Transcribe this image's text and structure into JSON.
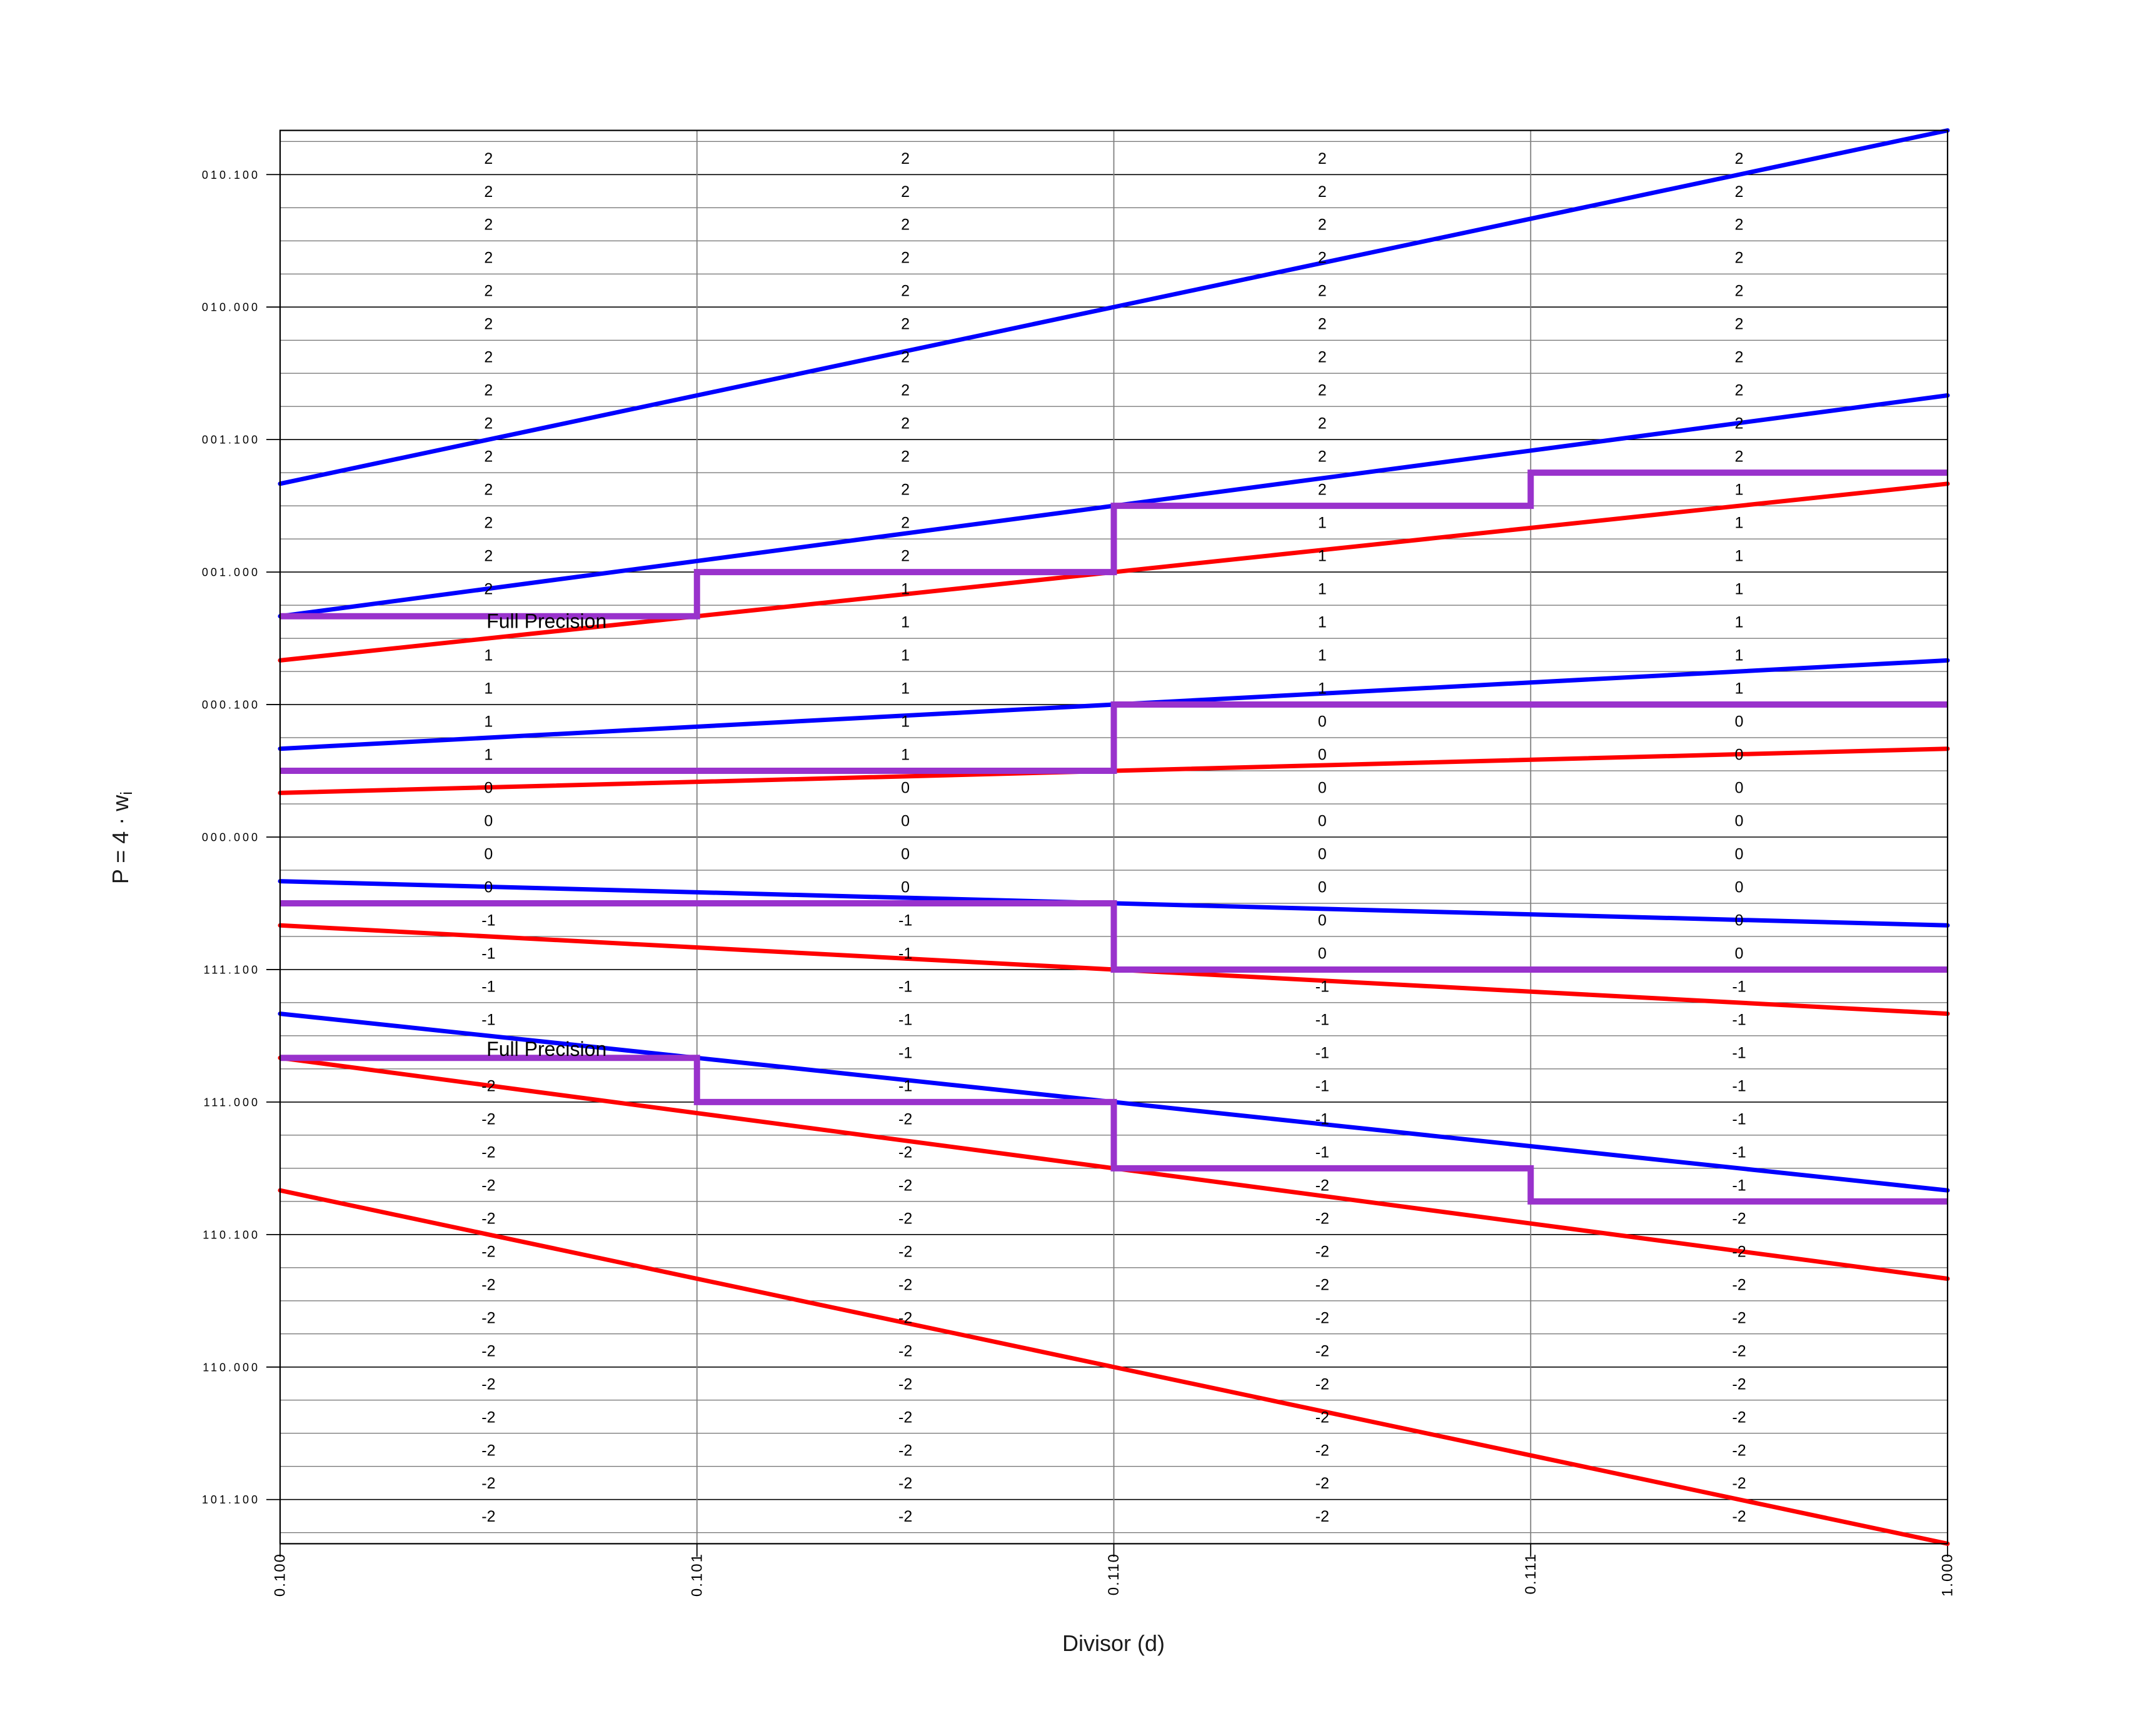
{
  "chart_data": {
    "type": "line",
    "title": "",
    "xlabel": "Divisor (d)",
    "ylabel": "P = 4 · w",
    "ylabel_sub": "i",
    "xlim": [
      0.5,
      1.0
    ],
    "ylim": [
      -2.6667,
      2.6667
    ],
    "grid": {
      "minor_step_p": 0.125,
      "major_step_p": 0.5,
      "vertical_lines_at_x_ticks": true,
      "legend": "none"
    },
    "colors": {
      "upper_bound_blue": "#0000ff",
      "lower_bound_red": "#ff0000",
      "staircase_purple": "#9932cc",
      "text": "#000000"
    },
    "x_ticks": [
      {
        "label": "0.100",
        "value": 0.5
      },
      {
        "label": "0.101",
        "value": 0.625
      },
      {
        "label": "0.110",
        "value": 0.75
      },
      {
        "label": "0.111",
        "value": 0.875
      },
      {
        "label": "1.000",
        "value": 1.0
      }
    ],
    "y_ticks": [
      {
        "label": "010.100",
        "value": 2.5
      },
      {
        "label": "010.000",
        "value": 2.0
      },
      {
        "label": "001.100",
        "value": 1.5
      },
      {
        "label": "001.000",
        "value": 1.0
      },
      {
        "label": "000.100",
        "value": 0.5
      },
      {
        "label": "000.000",
        "value": 0.0
      },
      {
        "label": "111.100",
        "value": -0.5
      },
      {
        "label": "111.000",
        "value": -1.0
      },
      {
        "label": "110.100",
        "value": -1.5
      },
      {
        "label": "110.000",
        "value": -2.0
      },
      {
        "label": "101.100",
        "value": -2.5
      }
    ],
    "lines": [
      {
        "name": "U2",
        "slope": "8/3",
        "m": 2.66667,
        "color_group": "blue"
      },
      {
        "name": "U1",
        "slope": "5/3",
        "m": 1.66667,
        "color_group": "blue"
      },
      {
        "name": "U0",
        "slope": "2/3",
        "m": 0.66667,
        "color_group": "blue"
      },
      {
        "name": "U-1",
        "slope": "-1/3",
        "m": -0.33333,
        "color_group": "blue"
      },
      {
        "name": "U-2",
        "slope": "-4/3",
        "m": -1.33333,
        "color_group": "blue"
      },
      {
        "name": "L2",
        "slope": "4/3",
        "m": 1.33333,
        "color_group": "red"
      },
      {
        "name": "L1",
        "slope": "1/3",
        "m": 0.33333,
        "color_group": "red"
      },
      {
        "name": "L0",
        "slope": "-2/3",
        "m": -0.66667,
        "color_group": "red"
      },
      {
        "name": "L-1",
        "slope": "-5/3",
        "m": -1.66667,
        "color_group": "red"
      },
      {
        "name": "L-2",
        "slope": "-8/3",
        "m": -2.66667,
        "color_group": "red"
      }
    ],
    "staircases": [
      {
        "name": "q2-q1-boundary",
        "label": "Full Precision",
        "label_anchor": {
          "d": 0.5619,
          "p": 0.789
        },
        "steps": [
          {
            "d0": 0.5,
            "d1": 0.625,
            "p": 0.83333
          },
          {
            "d0": 0.625,
            "d1": 0.75,
            "p": 1.0
          },
          {
            "d0": 0.75,
            "d1": 0.875,
            "p": 1.25
          },
          {
            "d0": 0.875,
            "d1": 1.0,
            "p": 1.375
          }
        ]
      },
      {
        "name": "q1-q0-boundary",
        "label": "",
        "steps": [
          {
            "d0": 0.5,
            "d1": 0.75,
            "p": 0.25
          },
          {
            "d0": 0.75,
            "d1": 1.0,
            "p": 0.5
          }
        ]
      },
      {
        "name": "q0-qm1-boundary",
        "label": "",
        "steps": [
          {
            "d0": 0.5,
            "d1": 0.75,
            "p": -0.25
          },
          {
            "d0": 0.75,
            "d1": 1.0,
            "p": -0.5
          }
        ]
      },
      {
        "name": "qm1-qm2-boundary",
        "label": "Full Precision",
        "label_anchor": {
          "d": 0.5619,
          "p": -0.826
        },
        "steps": [
          {
            "d0": 0.5,
            "d1": 0.625,
            "p": -0.83333
          },
          {
            "d0": 0.625,
            "d1": 0.75,
            "p": -1.0
          },
          {
            "d0": 0.75,
            "d1": 0.875,
            "p": -1.25
          },
          {
            "d0": 0.875,
            "d1": 1.0,
            "p": -1.375
          }
        ]
      }
    ],
    "quotient_digit_grid": {
      "row_top_center_p": 2.5625,
      "row_step_p": -0.125,
      "row_count": 42,
      "column_centers_d": [
        0.5625,
        0.6875,
        0.8125,
        0.9375
      ],
      "column_d_ranges": [
        [
          0.5,
          0.625
        ],
        [
          0.625,
          0.75
        ],
        [
          0.75,
          0.875
        ],
        [
          0.875,
          1.0
        ]
      ],
      "columns": [
        [
          "2",
          "2",
          "2",
          "2",
          "2",
          "2",
          "2",
          "2",
          "2",
          "2",
          "2",
          "2",
          "2",
          "2",
          "",
          "1",
          "1",
          "1",
          "1",
          "0",
          "0",
          "0",
          "0",
          "-1",
          "-1",
          "-1",
          "-1",
          "",
          "-2",
          "-2",
          "-2",
          "-2",
          "-2",
          "-2",
          "-2",
          "-2",
          "-2",
          "-2",
          "-2",
          "-2",
          "-2",
          "-2"
        ],
        [
          "2",
          "2",
          "2",
          "2",
          "2",
          "2",
          "2",
          "2",
          "2",
          "2",
          "2",
          "2",
          "2",
          "1",
          "1",
          "1",
          "1",
          "1",
          "1",
          "0",
          "0",
          "0",
          "0",
          "-1",
          "-1",
          "-1",
          "-1",
          "-1",
          "-1",
          "-2",
          "-2",
          "-2",
          "-2",
          "-2",
          "-2",
          "-2",
          "-2",
          "-2",
          "-2",
          "-2",
          "-2",
          "-2"
        ],
        [
          "2",
          "2",
          "2",
          "2",
          "2",
          "2",
          "2",
          "2",
          "2",
          "2",
          "2",
          "1",
          "1",
          "1",
          "1",
          "1",
          "1",
          "0",
          "0",
          "0",
          "0",
          "0",
          "0",
          "0",
          "0",
          "-1",
          "-1",
          "-1",
          "-1",
          "-1",
          "-1",
          "-2",
          "-2",
          "-2",
          "-2",
          "-2",
          "-2",
          "-2",
          "-2",
          "-2",
          "-2",
          "-2"
        ],
        [
          "2",
          "2",
          "2",
          "2",
          "2",
          "2",
          "2",
          "2",
          "2",
          "2",
          "1",
          "1",
          "1",
          "1",
          "1",
          "1",
          "1",
          "0",
          "0",
          "0",
          "0",
          "0",
          "0",
          "0",
          "0",
          "-1",
          "-1",
          "-1",
          "-1",
          "-1",
          "-1",
          "-1",
          "-2",
          "-2",
          "-2",
          "-2",
          "-2",
          "-2",
          "-2",
          "-2",
          "-2",
          "-2"
        ]
      ]
    }
  }
}
